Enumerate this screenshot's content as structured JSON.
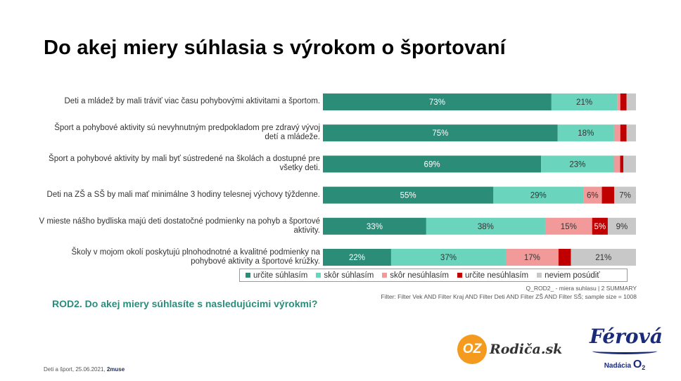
{
  "title": "Do akej miery súhlasia s výrokom o športovaní",
  "colors": {
    "urcite_suhlasim": "#2b8c78",
    "skor_suhlasim": "#6ad4bc",
    "skor_nesuhlasim": "#f29a9a",
    "urcite_nesuhlasim": "#c00000",
    "neviem_posudit": "#c8c8c8"
  },
  "chart_data": {
    "type": "bar",
    "orientation": "horizontal-stacked-100",
    "categories": [
      "Deti a mládež by mali tráviť viac času pohybovými aktivitami a športom.",
      "Šport a pohybové aktivity sú nevyhnutným predpokladom pre zdravý vývoj detí a mládeže.",
      "Šport a pohybové aktivity by mali byť sústredené na školách a dostupné pre všetky deti.",
      "Deti na ZŠ a SŠ by mali mať minimálne 3 hodiny telesnej výchovy týždenne.",
      "V mieste nášho bydliska majú deti dostatočné podmienky na pohyb a športové aktivity.",
      "Školy v mojom okolí poskytujú plnohodnotné a kvalitné podmienky na pohybové aktivity a športové krúžky."
    ],
    "series": [
      {
        "name": "určite súhlasím",
        "values": [
          73,
          75,
          69,
          55,
          33,
          22
        ],
        "labels": [
          "73%",
          "75%",
          "69%",
          "55%",
          "33%",
          "22%"
        ]
      },
      {
        "name": "skôr súhlasím",
        "values": [
          21,
          18,
          23,
          29,
          38,
          37
        ],
        "labels": [
          "21%",
          "18%",
          "23%",
          "29%",
          "38%",
          "37%"
        ]
      },
      {
        "name": "skôr nesúhlasím",
        "values": [
          1,
          2,
          2,
          6,
          15,
          17
        ],
        "labels": [
          "",
          "",
          "",
          "6%",
          "15%",
          "17%"
        ]
      },
      {
        "name": "určite nesúhlasím",
        "values": [
          2,
          2,
          1,
          4,
          5,
          4
        ],
        "labels": [
          "",
          "",
          "",
          "",
          "5%",
          ""
        ]
      },
      {
        "name": "neviem posúdiť",
        "values": [
          3,
          3,
          4,
          7,
          9,
          21
        ],
        "labels": [
          "",
          "",
          "",
          "7%",
          "9%",
          "21%"
        ]
      }
    ],
    "xlim": [
      0,
      100
    ],
    "legend_position": "bottom"
  },
  "meta": {
    "line1": "Q_ROD2_ - miera suhlasu | 2 SUMMARY",
    "line2": "Filter: Filter Vek AND Filter Kraj AND Filter Deti AND Filter ZŠ AND Filter SŠ; sample size = 1008"
  },
  "question": "ROD2. Do akej miery súhlasíte s nasledujúcimi výrokmi?",
  "footer": {
    "text": "Deti a šport, 25.06.2021,",
    "brand": "2muse"
  },
  "logos": {
    "oz_mark": "OZ",
    "oz_name": "Rodiča.sk",
    "ferova_name": "Férová",
    "ferova_sub": "Nadácia",
    "ferova_brand": "O",
    "ferova_brand_sub": "2"
  }
}
